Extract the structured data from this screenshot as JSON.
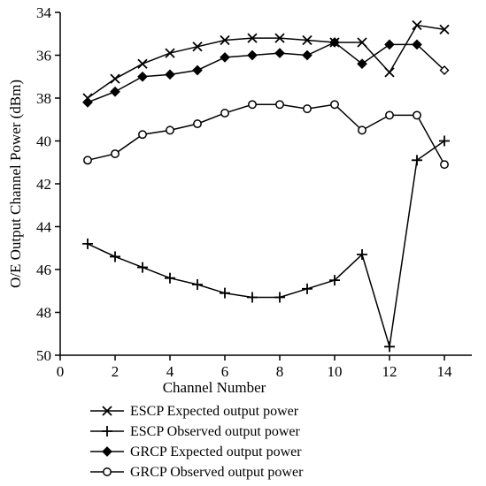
{
  "chart_data": {
    "type": "line",
    "title": "",
    "xlabel": "Channel Number",
    "ylabel": "O/E Output Channel Power (dBm)",
    "xlim": [
      0,
      15
    ],
    "ylim": [
      34,
      50
    ],
    "y_inverted": true,
    "x_ticks": [
      0,
      2,
      4,
      6,
      8,
      10,
      12,
      14
    ],
    "y_ticks": [
      34,
      36,
      38,
      40,
      42,
      44,
      46,
      48,
      50
    ],
    "grid": false,
    "legend_position": "bottom",
    "x": [
      1,
      2,
      3,
      4,
      5,
      6,
      7,
      8,
      9,
      10,
      11,
      12,
      13,
      14
    ],
    "series": [
      {
        "name": "ESCP Expected output power",
        "marker": "x",
        "values": [
          38.0,
          37.1,
          36.4,
          35.9,
          35.6,
          35.3,
          35.2,
          35.2,
          35.3,
          35.4,
          35.4,
          36.8,
          34.6,
          34.8
        ]
      },
      {
        "name": "ESCP Observed output power",
        "marker": "plus",
        "values": [
          44.8,
          45.4,
          45.9,
          46.4,
          46.7,
          47.1,
          47.3,
          47.3,
          46.9,
          46.5,
          45.3,
          49.6,
          40.9,
          40.0
        ]
      },
      {
        "name": "GRCP Expected output power",
        "marker": "filled-diamond",
        "values": [
          38.2,
          37.7,
          37.0,
          36.9,
          36.7,
          36.1,
          36.0,
          35.9,
          36.0,
          35.4,
          36.4,
          35.5,
          35.5,
          36.7
        ]
      },
      {
        "name": "GRCP Observed output power",
        "marker": "open-circle",
        "values": [
          40.9,
          40.6,
          39.7,
          39.5,
          39.2,
          38.7,
          38.3,
          38.3,
          38.5,
          38.3,
          39.5,
          38.8,
          38.8,
          41.1
        ]
      }
    ]
  }
}
